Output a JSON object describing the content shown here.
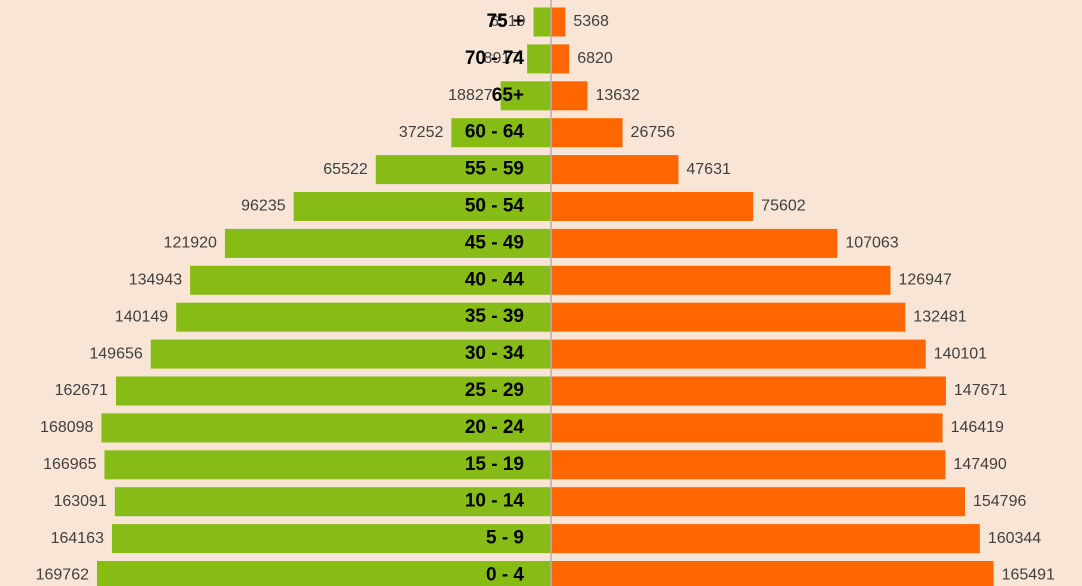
{
  "chart_data": {
    "type": "pyramid",
    "categories": [
      "75 +",
      "70 - 74",
      "65+",
      "60 - 64",
      "55 - 59",
      "50 - 54",
      "45 - 49",
      "40 - 44",
      "35 - 39",
      "30 - 34",
      "25 - 29",
      "20 - 24",
      "15 - 19",
      "10 - 14",
      "5 - 9",
      "0 - 4"
    ],
    "series": [
      {
        "color": "#86bc15",
        "values": [
          6519,
          8917,
          18827,
          37252,
          65522,
          96235,
          121920,
          134943,
          140149,
          149656,
          162671,
          168098,
          166965,
          163091,
          164163,
          169762
        ]
      },
      {
        "color": "#ff6600",
        "values": [
          5368,
          6820,
          13632,
          26756,
          47631,
          75602,
          107063,
          126947,
          132481,
          140101,
          147671,
          146419,
          147490,
          154796,
          160344,
          165491
        ]
      }
    ]
  }
}
